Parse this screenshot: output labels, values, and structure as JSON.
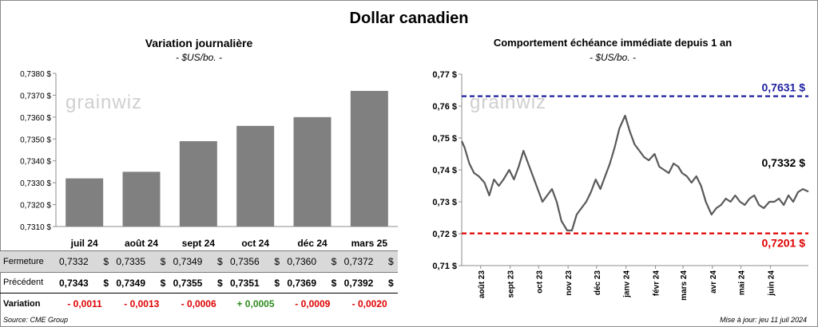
{
  "title": "Dollar canadien",
  "left": {
    "title": "Variation  journalière",
    "subtitle": "- $US/bo. -",
    "watermark": "grainwiz"
  },
  "right": {
    "title": "Comportement échéance immédiate depuis 1 an",
    "subtitle": "- $US/bo. -",
    "watermark": "grainwiz"
  },
  "table": {
    "row_labels": {
      "close": "Fermeture",
      "previous": "Précédent",
      "change": "Variation"
    },
    "currency": "$",
    "close": [
      "0,7332",
      "0,7335",
      "0,7349",
      "0,7356",
      "0,7360",
      "0,7372"
    ],
    "previous": [
      "0,7343",
      "0,7349",
      "0,7355",
      "0,7351",
      "0,7369",
      "0,7392"
    ],
    "change": [
      "- 0,0011",
      "- 0,0013",
      "- 0,0006",
      "+ 0,0005",
      "- 0,0009",
      "- 0,0020"
    ]
  },
  "footer": {
    "source": "Source: CME Group",
    "updated": "Mise à jour: jeu 11 juil 2024"
  },
  "colors": {
    "bar": "#808080",
    "line": "#595959",
    "upper": "#1f1fa0",
    "lower": "#e00000",
    "negative": "#e00000",
    "positive": "#2e8b1e",
    "close_row_bg": "#d9d9d9"
  },
  "chart_data": [
    {
      "type": "bar",
      "title": "Variation  journalière",
      "subtitle": "- $US/bo. -",
      "categories": [
        "juil 24",
        "août 24",
        "sept 24",
        "oct 24",
        "déc 24",
        "mars 25"
      ],
      "values": [
        0.7332,
        0.7335,
        0.7349,
        0.7356,
        0.736,
        0.7372
      ],
      "ylim": [
        0.731,
        0.738
      ],
      "yticks": [
        "0,7310 $",
        "0,7320 $",
        "0,7330 $",
        "0,7340 $",
        "0,7350 $",
        "0,7360 $",
        "0,7370 $",
        "0,7380 $"
      ],
      "grid": false
    },
    {
      "type": "line",
      "title": "Comportement échéance immédiate depuis 1 an",
      "subtitle": "- $US/bo. -",
      "ylim": [
        0.71,
        0.77
      ],
      "yticks": [
        "0,71 $",
        "0,72 $",
        "0,73 $",
        "0,74 $",
        "0,75 $",
        "0,76 $",
        "0,77 $"
      ],
      "xticks": [
        "août 23",
        "sept 23",
        "oct 23",
        "nov 23",
        "déc 23",
        "janv 24",
        "févr 24",
        "mars 24",
        "avr 24",
        "mai 24",
        "juin 24"
      ],
      "x_range": [
        "2023-07-12",
        "2024-07-11"
      ],
      "hlines": [
        {
          "value": 0.7631,
          "label": "0,7631 $",
          "color": "#1f1fa0"
        },
        {
          "value": 0.7201,
          "label": "0,7201 $",
          "color": "#e00000"
        }
      ],
      "last_label": "0,7332 $",
      "series": [
        {
          "x": [
            "2023-07-12",
            "2023-07-15",
            "2023-07-20",
            "2023-07-25",
            "2023-07-30",
            "2023-08-05",
            "2023-08-10",
            "2023-08-15",
            "2023-08-20",
            "2023-08-25",
            "2023-08-31",
            "2023-09-05",
            "2023-09-10",
            "2023-09-15",
            "2023-09-20",
            "2023-09-25",
            "2023-09-30",
            "2023-10-05",
            "2023-10-10",
            "2023-10-15",
            "2023-10-20",
            "2023-10-25",
            "2023-10-31",
            "2023-11-05",
            "2023-11-10",
            "2023-11-15",
            "2023-11-20",
            "2023-11-25",
            "2023-11-30",
            "2023-12-05",
            "2023-12-10",
            "2023-12-15",
            "2023-12-20",
            "2023-12-25",
            "2023-12-31",
            "2024-01-05",
            "2024-01-10",
            "2024-01-15",
            "2024-01-20",
            "2024-01-25",
            "2024-01-31",
            "2024-02-05",
            "2024-02-10",
            "2024-02-15",
            "2024-02-20",
            "2024-02-25",
            "2024-02-29",
            "2024-03-05",
            "2024-03-10",
            "2024-03-15",
            "2024-03-20",
            "2024-03-25",
            "2024-03-31",
            "2024-04-05",
            "2024-04-10",
            "2024-04-15",
            "2024-04-20",
            "2024-04-25",
            "2024-04-30",
            "2024-05-05",
            "2024-05-10",
            "2024-05-15",
            "2024-05-20",
            "2024-05-25",
            "2024-05-31",
            "2024-06-05",
            "2024-06-10",
            "2024-06-15",
            "2024-06-20",
            "2024-06-25",
            "2024-06-30",
            "2024-07-05",
            "2024-07-11"
          ],
          "values": [
            0.749,
            0.747,
            0.742,
            0.739,
            0.738,
            0.736,
            0.732,
            0.737,
            0.735,
            0.737,
            0.74,
            0.737,
            0.741,
            0.746,
            0.742,
            0.738,
            0.734,
            0.73,
            0.732,
            0.734,
            0.73,
            0.724,
            0.721,
            0.721,
            0.726,
            0.728,
            0.73,
            0.733,
            0.737,
            0.734,
            0.738,
            0.742,
            0.747,
            0.753,
            0.757,
            0.752,
            0.748,
            0.746,
            0.744,
            0.743,
            0.745,
            0.741,
            0.74,
            0.739,
            0.742,
            0.741,
            0.739,
            0.738,
            0.736,
            0.738,
            0.735,
            0.73,
            0.726,
            0.728,
            0.729,
            0.731,
            0.73,
            0.732,
            0.73,
            0.729,
            0.731,
            0.732,
            0.729,
            0.728,
            0.73,
            0.73,
            0.731,
            0.729,
            0.732,
            0.73,
            0.733,
            0.734,
            0.7332
          ]
        }
      ]
    }
  ]
}
